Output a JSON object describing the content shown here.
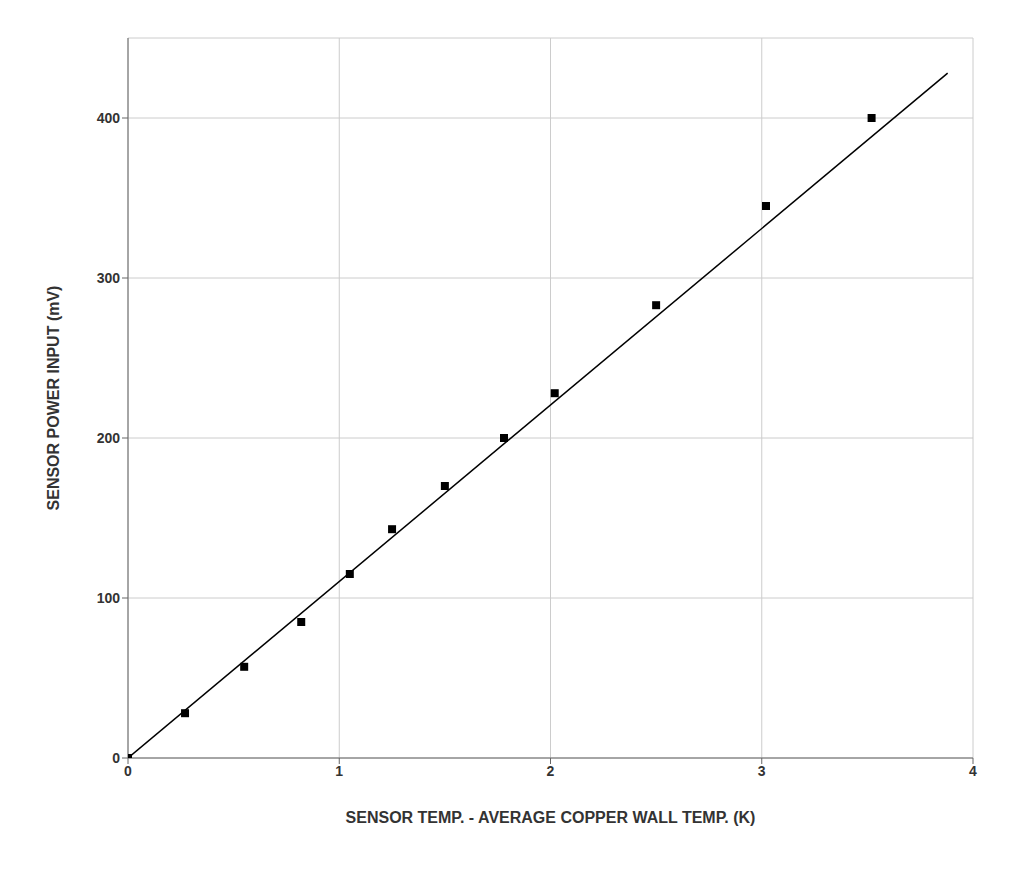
{
  "chart_data": {
    "type": "scatter",
    "xlabel": "SENSOR TEMP. - AVERAGE COPPER WALL TEMP. (K)",
    "ylabel": "SENSOR POWER INPUT (mV)",
    "xlim": [
      0,
      4
    ],
    "ylim": [
      0,
      450
    ],
    "xticks": [
      0,
      1,
      2,
      3,
      4
    ],
    "yticks": [
      0,
      100,
      200,
      300,
      400
    ],
    "grid": true,
    "series": [
      {
        "type": "line",
        "color": "#000000",
        "x": [
          0.0,
          3.88
        ],
        "values": [
          0.0,
          428
        ]
      },
      {
        "type": "scatter",
        "color": "#000000",
        "marker": "square",
        "x": [
          0.0,
          0.27,
          0.55,
          0.82,
          1.05,
          1.25,
          1.5,
          1.78,
          2.02,
          2.5,
          3.02,
          3.52
        ],
        "values": [
          0,
          28,
          57,
          85,
          115,
          143,
          170,
          200,
          228,
          283,
          345,
          400
        ]
      }
    ]
  }
}
